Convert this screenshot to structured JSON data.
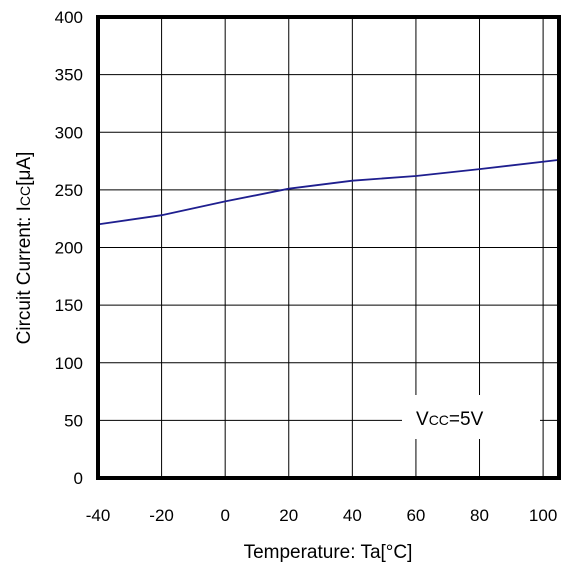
{
  "chart_data": {
    "type": "line",
    "title": "",
    "xlabel": "Temperature: Ta[°C]",
    "ylabel": "Circuit Current: ICC[μA]",
    "ylabel_parts": {
      "prefix": "Circuit Current: I",
      "subscript": "CC",
      "suffix": "[μA]"
    },
    "xlim": [
      -40,
      105
    ],
    "ylim": [
      0,
      400
    ],
    "xticks": [
      -40,
      -20,
      0,
      20,
      40,
      60,
      80,
      100
    ],
    "xtick_labels": [
      "-40",
      "-20",
      "0",
      "20",
      "40",
      "60",
      "80",
      "100"
    ],
    "yticks": [
      0,
      50,
      100,
      150,
      200,
      250,
      300,
      350,
      400
    ],
    "ytick_labels": [
      "0",
      "50",
      "100",
      "150",
      "200",
      "250",
      "300",
      "350",
      "400"
    ],
    "grid": true,
    "series": [
      {
        "color": "#1f1f8f",
        "x": [
          -40,
          -20,
          0,
          20,
          40,
          60,
          80,
          105
        ],
        "y": [
          220,
          228,
          240,
          251,
          258,
          262,
          268,
          276
        ]
      }
    ],
    "annotation": {
      "text": "VCC=5V",
      "prefix": "V",
      "subscript": "CC",
      "suffix": "=5V"
    }
  },
  "colors": {
    "axis": "#000000",
    "grid": "#000000",
    "line": "#1f1f8f",
    "background": "#ffffff"
  }
}
